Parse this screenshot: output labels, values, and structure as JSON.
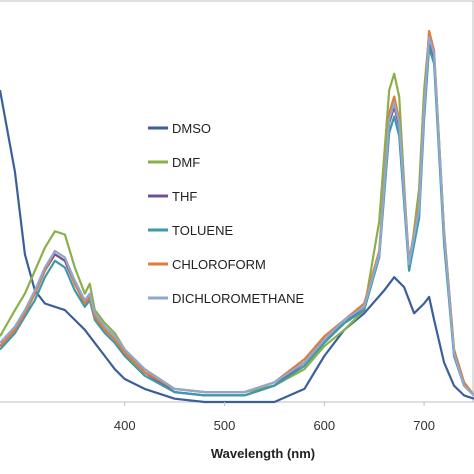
{
  "chart_data": {
    "type": "line",
    "title": "",
    "xlabel": "Wavelength (nm)",
    "ylabel": "",
    "xlim": [
      275,
      750
    ],
    "ylim": [
      0,
      1.2
    ],
    "x_ticks": [
      400,
      500,
      600,
      700
    ],
    "grid": false,
    "legend_position": "center",
    "series": [
      {
        "name": "DMSO",
        "color": "#3b5f9b",
        "x": [
          275,
          290,
          300,
          310,
          320,
          330,
          340,
          350,
          360,
          370,
          380,
          390,
          400,
          420,
          450,
          480,
          500,
          520,
          550,
          580,
          600,
          620,
          640,
          660,
          670,
          680,
          690,
          700,
          705,
          710,
          720,
          730,
          740,
          750
        ],
        "y": [
          0.95,
          0.7,
          0.45,
          0.34,
          0.3,
          0.29,
          0.28,
          0.25,
          0.22,
          0.18,
          0.14,
          0.1,
          0.07,
          0.04,
          0.01,
          0.0,
          0.0,
          0.0,
          0.0,
          0.04,
          0.14,
          0.22,
          0.27,
          0.34,
          0.38,
          0.35,
          0.27,
          0.3,
          0.32,
          0.25,
          0.12,
          0.05,
          0.02,
          0.01
        ]
      },
      {
        "name": "DMF",
        "color": "#8bb04a",
        "x": [
          275,
          290,
          300,
          310,
          320,
          330,
          340,
          350,
          360,
          365,
          370,
          380,
          390,
          400,
          420,
          450,
          480,
          500,
          520,
          550,
          580,
          600,
          620,
          640,
          655,
          665,
          670,
          675,
          685,
          695,
          700,
          705,
          710,
          720,
          730,
          740,
          750
        ],
        "y": [
          0.2,
          0.28,
          0.33,
          0.4,
          0.47,
          0.52,
          0.51,
          0.41,
          0.33,
          0.36,
          0.28,
          0.24,
          0.21,
          0.16,
          0.1,
          0.04,
          0.03,
          0.03,
          0.03,
          0.05,
          0.1,
          0.17,
          0.22,
          0.28,
          0.55,
          0.95,
          1.0,
          0.93,
          0.4,
          0.65,
          0.95,
          1.12,
          1.06,
          0.52,
          0.16,
          0.06,
          0.02
        ]
      },
      {
        "name": "THF",
        "color": "#6f4f9a",
        "x": [
          275,
          290,
          300,
          310,
          320,
          330,
          340,
          350,
          360,
          365,
          370,
          380,
          390,
          400,
          420,
          450,
          480,
          500,
          520,
          550,
          580,
          600,
          620,
          640,
          655,
          665,
          670,
          675,
          685,
          695,
          700,
          705,
          710,
          720,
          730,
          740,
          750
        ],
        "y": [
          0.17,
          0.22,
          0.27,
          0.33,
          0.4,
          0.45,
          0.43,
          0.36,
          0.3,
          0.32,
          0.26,
          0.22,
          0.19,
          0.15,
          0.09,
          0.03,
          0.02,
          0.02,
          0.02,
          0.05,
          0.12,
          0.19,
          0.24,
          0.29,
          0.45,
          0.85,
          0.9,
          0.84,
          0.42,
          0.58,
          0.88,
          1.1,
          1.05,
          0.5,
          0.15,
          0.05,
          0.02
        ]
      },
      {
        "name": "TOLUENE",
        "color": "#3e9aa8",
        "x": [
          275,
          290,
          300,
          310,
          320,
          330,
          340,
          350,
          360,
          365,
          370,
          380,
          390,
          400,
          420,
          450,
          480,
          500,
          520,
          550,
          580,
          600,
          620,
          640,
          655,
          665,
          670,
          675,
          685,
          695,
          700,
          705,
          710,
          720,
          730,
          740,
          750
        ],
        "y": [
          0.16,
          0.21,
          0.26,
          0.31,
          0.38,
          0.43,
          0.41,
          0.34,
          0.29,
          0.31,
          0.25,
          0.21,
          0.18,
          0.14,
          0.08,
          0.03,
          0.02,
          0.02,
          0.02,
          0.05,
          0.11,
          0.18,
          0.24,
          0.28,
          0.44,
          0.82,
          0.87,
          0.81,
          0.4,
          0.56,
          0.86,
          1.08,
          1.03,
          0.48,
          0.14,
          0.05,
          0.02
        ]
      },
      {
        "name": "CHLOROFORM",
        "color": "#e07b39",
        "x": [
          275,
          290,
          300,
          310,
          320,
          330,
          340,
          350,
          360,
          365,
          370,
          380,
          390,
          400,
          420,
          450,
          480,
          500,
          520,
          550,
          580,
          600,
          620,
          640,
          655,
          665,
          670,
          675,
          685,
          695,
          700,
          705,
          710,
          720,
          730,
          740,
          750
        ],
        "y": [
          0.17,
          0.22,
          0.27,
          0.33,
          0.4,
          0.46,
          0.44,
          0.36,
          0.3,
          0.32,
          0.26,
          0.22,
          0.19,
          0.15,
          0.09,
          0.04,
          0.03,
          0.03,
          0.03,
          0.06,
          0.13,
          0.2,
          0.25,
          0.3,
          0.46,
          0.88,
          0.93,
          0.86,
          0.43,
          0.6,
          0.9,
          1.13,
          1.07,
          0.52,
          0.16,
          0.06,
          0.02
        ]
      },
      {
        "name": "DICHLOROMETHANE",
        "color": "#8fa8d0",
        "x": [
          275,
          290,
          300,
          310,
          320,
          330,
          340,
          350,
          360,
          365,
          370,
          380,
          390,
          400,
          420,
          450,
          480,
          500,
          520,
          550,
          580,
          600,
          620,
          640,
          655,
          665,
          670,
          675,
          685,
          695,
          700,
          705,
          710,
          720,
          730,
          740,
          750
        ],
        "y": [
          0.18,
          0.23,
          0.28,
          0.34,
          0.41,
          0.46,
          0.44,
          0.37,
          0.31,
          0.33,
          0.27,
          0.23,
          0.2,
          0.16,
          0.1,
          0.04,
          0.03,
          0.03,
          0.03,
          0.06,
          0.12,
          0.19,
          0.25,
          0.29,
          0.45,
          0.86,
          0.91,
          0.85,
          0.42,
          0.59,
          0.89,
          1.11,
          1.06,
          0.51,
          0.15,
          0.05,
          0.02
        ]
      }
    ]
  }
}
